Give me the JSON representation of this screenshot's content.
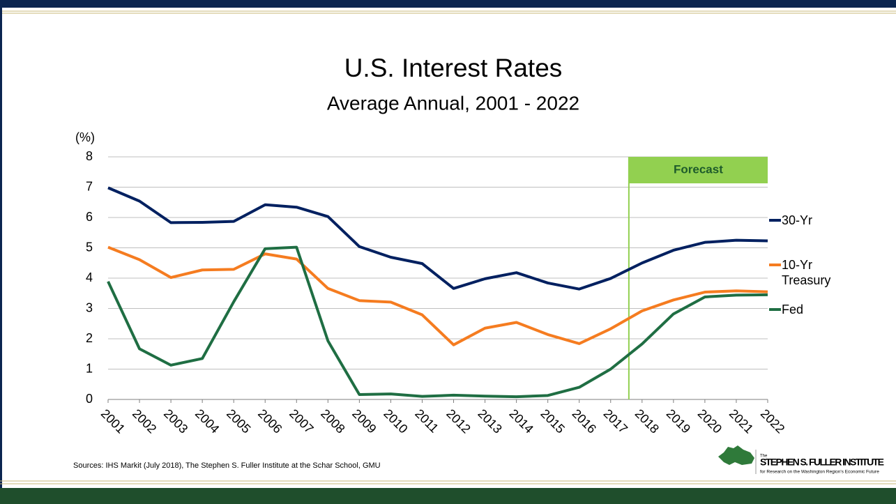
{
  "chart_data": {
    "type": "line",
    "title": "U.S. Interest Rates",
    "subtitle": "Average Annual, 2001 - 2022",
    "y_axis_label": "(%)",
    "categories": [
      "2001",
      "2002",
      "2003",
      "2004",
      "2005",
      "2006",
      "2007",
      "2008",
      "2009",
      "2010",
      "2011",
      "2012",
      "2013",
      "2014",
      "2015",
      "2016",
      "2017",
      "2018",
      "2019",
      "2020",
      "2021",
      "2022"
    ],
    "series": [
      {
        "name": "30-Yr",
        "color": "#002060",
        "values": [
          6.98,
          6.54,
          5.83,
          5.84,
          5.87,
          6.42,
          6.34,
          6.03,
          5.04,
          4.69,
          4.48,
          3.66,
          3.98,
          4.18,
          3.84,
          3.64,
          3.99,
          4.5,
          4.92,
          5.18,
          5.25,
          5.23
        ]
      },
      {
        "name": "10-Yr Treasury",
        "color": "#f57c20",
        "values": [
          5.02,
          4.61,
          4.02,
          4.27,
          4.29,
          4.8,
          4.63,
          3.66,
          3.26,
          3.21,
          2.79,
          1.8,
          2.35,
          2.54,
          2.14,
          1.84,
          2.33,
          2.92,
          3.28,
          3.54,
          3.58,
          3.55
        ]
      },
      {
        "name": "Fed",
        "color": "#1f6e43",
        "values": [
          3.89,
          1.67,
          1.13,
          1.35,
          3.22,
          4.97,
          5.02,
          1.93,
          0.16,
          0.18,
          0.1,
          0.14,
          0.11,
          0.09,
          0.13,
          0.4,
          1.0,
          1.83,
          2.82,
          3.38,
          3.44,
          3.45
        ]
      }
    ],
    "ylim": [
      0,
      8
    ],
    "yticks": [
      0,
      1,
      2,
      3,
      4,
      5,
      6,
      7,
      8
    ],
    "grid": true,
    "legend": "right",
    "annotation": "Forecast",
    "source": "Sources: IHS Markit (July 2018), The Stephen S. Fuller Institute at the Schar School, GMU"
  },
  "logo": {
    "small": "The",
    "name": "STEPHEN S. FULLER INSTITUTE",
    "tagline": "for Research on the Washington Region's Economic Future"
  }
}
